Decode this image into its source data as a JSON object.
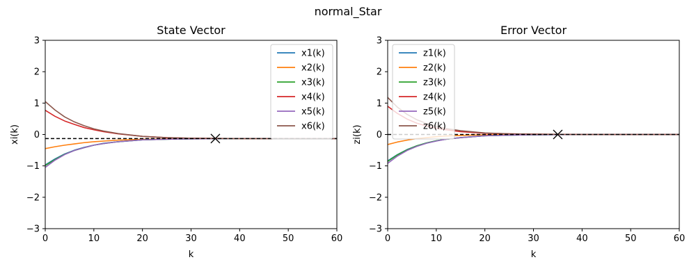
{
  "figure": {
    "title": "normal_Star"
  },
  "chart_data": [
    {
      "type": "line",
      "title": "State Vector",
      "xlabel": "k",
      "ylabel": "xi(k)",
      "xlim": [
        0,
        60
      ],
      "ylim": [
        -3,
        3
      ],
      "xticks": [
        0,
        10,
        20,
        30,
        40,
        50,
        60
      ],
      "yticks": [
        -3,
        -2,
        -1,
        0,
        1,
        2,
        3
      ],
      "xtick_labels": [
        "0",
        "10",
        "20",
        "30",
        "40",
        "50",
        "60"
      ],
      "ytick_labels": [
        "−3",
        "−2",
        "−1",
        "0",
        "1",
        "2",
        "3"
      ],
      "grid": false,
      "legend": "top-right",
      "reference_line": {
        "y": -0.13,
        "style": "dashed",
        "color": "#000000"
      },
      "marker": {
        "x": 35,
        "y": -0.13,
        "symbol": "x"
      },
      "x": [
        0,
        2,
        4,
        6,
        8,
        10,
        12,
        15,
        20,
        25,
        30,
        40,
        50,
        60
      ],
      "series": [
        {
          "name": "x1(k)",
          "color": "#1f77b4",
          "values": [
            -0.97,
            -0.78,
            -0.62,
            -0.5,
            -0.41,
            -0.34,
            -0.28,
            -0.23,
            -0.17,
            -0.15,
            -0.14,
            -0.13,
            -0.13,
            -0.13
          ]
        },
        {
          "name": "x2(k)",
          "color": "#ff7f0e",
          "values": [
            -0.45,
            -0.39,
            -0.34,
            -0.3,
            -0.26,
            -0.23,
            -0.21,
            -0.18,
            -0.15,
            -0.14,
            -0.13,
            -0.13,
            -0.13,
            -0.13
          ]
        },
        {
          "name": "x3(k)",
          "color": "#2ca02c",
          "values": [
            -0.99,
            -0.8,
            -0.63,
            -0.51,
            -0.42,
            -0.34,
            -0.29,
            -0.23,
            -0.17,
            -0.15,
            -0.14,
            -0.13,
            -0.13,
            -0.13
          ]
        },
        {
          "name": "x4(k)",
          "color": "#d62728",
          "values": [
            0.77,
            0.58,
            0.43,
            0.32,
            0.22,
            0.15,
            0.09,
            0.02,
            -0.06,
            -0.1,
            -0.12,
            -0.13,
            -0.13,
            -0.13
          ]
        },
        {
          "name": "x5(k)",
          "color": "#9467bd",
          "values": [
            -1.05,
            -0.82,
            -0.64,
            -0.51,
            -0.42,
            -0.34,
            -0.29,
            -0.23,
            -0.17,
            -0.15,
            -0.14,
            -0.13,
            -0.13,
            -0.13
          ]
        },
        {
          "name": "x6(k)",
          "color": "#8c564b",
          "values": [
            1.05,
            0.78,
            0.56,
            0.4,
            0.28,
            0.18,
            0.11,
            0.03,
            -0.06,
            -0.1,
            -0.12,
            -0.13,
            -0.13,
            -0.13
          ]
        }
      ]
    },
    {
      "type": "line",
      "title": "Error Vector",
      "xlabel": "k",
      "ylabel": "zi(k)",
      "xlim": [
        0,
        60
      ],
      "ylim": [
        -3,
        3
      ],
      "xticks": [
        0,
        10,
        20,
        30,
        40,
        50,
        60
      ],
      "yticks": [
        -3,
        -2,
        -1,
        0,
        1,
        2,
        3
      ],
      "xtick_labels": [
        "0",
        "10",
        "20",
        "30",
        "40",
        "50",
        "60"
      ],
      "ytick_labels": [
        "−3",
        "−2",
        "−1",
        "0",
        "1",
        "2",
        "3"
      ],
      "grid": false,
      "legend": "top-left",
      "reference_line": {
        "y": 0,
        "style": "dashed",
        "color": "#000000"
      },
      "marker": {
        "x": 35,
        "y": 0,
        "symbol": "x"
      },
      "x": [
        0,
        2,
        4,
        6,
        8,
        10,
        12,
        15,
        20,
        25,
        30,
        40,
        50,
        60
      ],
      "series": [
        {
          "name": "z1(k)",
          "color": "#1f77b4",
          "values": [
            -0.84,
            -0.64,
            -0.48,
            -0.36,
            -0.27,
            -0.2,
            -0.15,
            -0.1,
            -0.04,
            -0.02,
            -0.01,
            0,
            0,
            0
          ]
        },
        {
          "name": "z2(k)",
          "color": "#ff7f0e",
          "values": [
            -0.32,
            -0.24,
            -0.18,
            -0.13,
            -0.1,
            -0.07,
            -0.05,
            -0.03,
            -0.01,
            0,
            0,
            0,
            0,
            0
          ]
        },
        {
          "name": "z3(k)",
          "color": "#2ca02c",
          "values": [
            -0.86,
            -0.65,
            -0.49,
            -0.36,
            -0.27,
            -0.2,
            -0.15,
            -0.1,
            -0.04,
            -0.02,
            -0.01,
            0,
            0,
            0
          ]
        },
        {
          "name": "z4(k)",
          "color": "#d62728",
          "values": [
            0.9,
            0.67,
            0.49,
            0.36,
            0.27,
            0.2,
            0.15,
            0.09,
            0.04,
            0.02,
            0.01,
            0,
            0,
            0
          ]
        },
        {
          "name": "z5(k)",
          "color": "#9467bd",
          "values": [
            -0.92,
            -0.69,
            -0.51,
            -0.38,
            -0.28,
            -0.21,
            -0.15,
            -0.1,
            -0.04,
            -0.02,
            -0.01,
            0,
            0,
            0
          ]
        },
        {
          "name": "z6(k)",
          "color": "#8c564b",
          "values": [
            1.18,
            0.87,
            0.64,
            0.47,
            0.35,
            0.26,
            0.19,
            0.12,
            0.05,
            0.02,
            0.01,
            0,
            0,
            0
          ]
        }
      ]
    }
  ]
}
